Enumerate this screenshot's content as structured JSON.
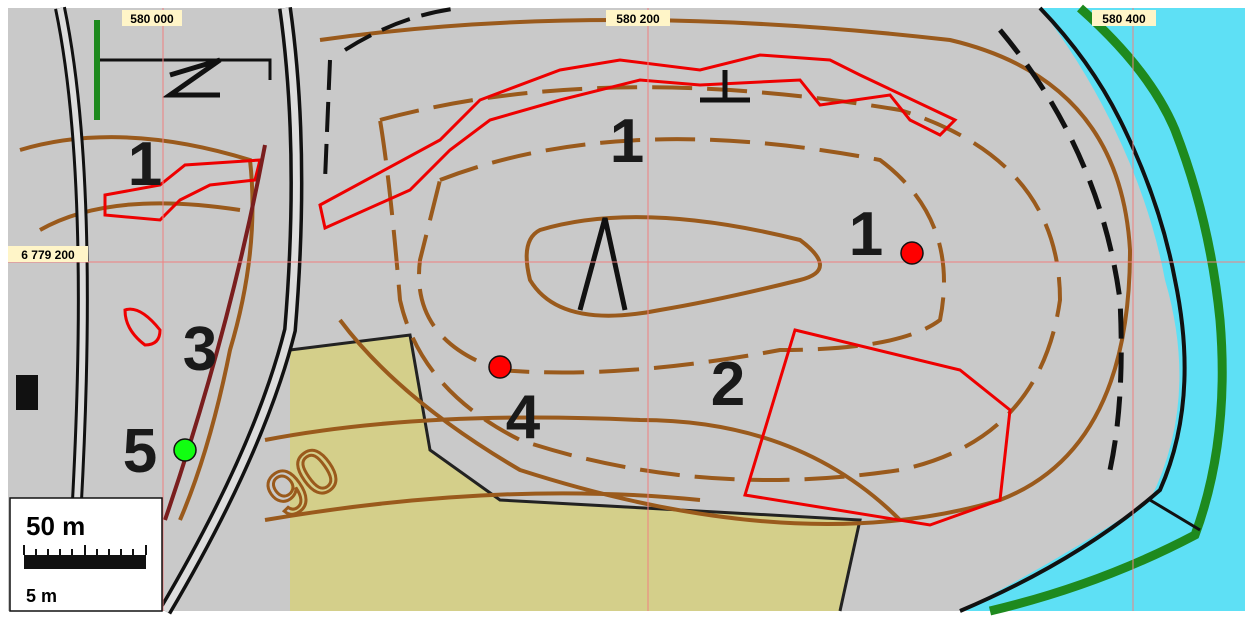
{
  "grid_labels": {
    "x": [
      "580 000",
      "580 200",
      "580 400"
    ],
    "y": [
      "6 779 200"
    ]
  },
  "site_numbers": [
    "1",
    "1",
    "1",
    "2",
    "3",
    "4",
    "5"
  ],
  "contour_label": "90",
  "scale_bar": {
    "large": "50 m",
    "small": "5 m"
  }
}
